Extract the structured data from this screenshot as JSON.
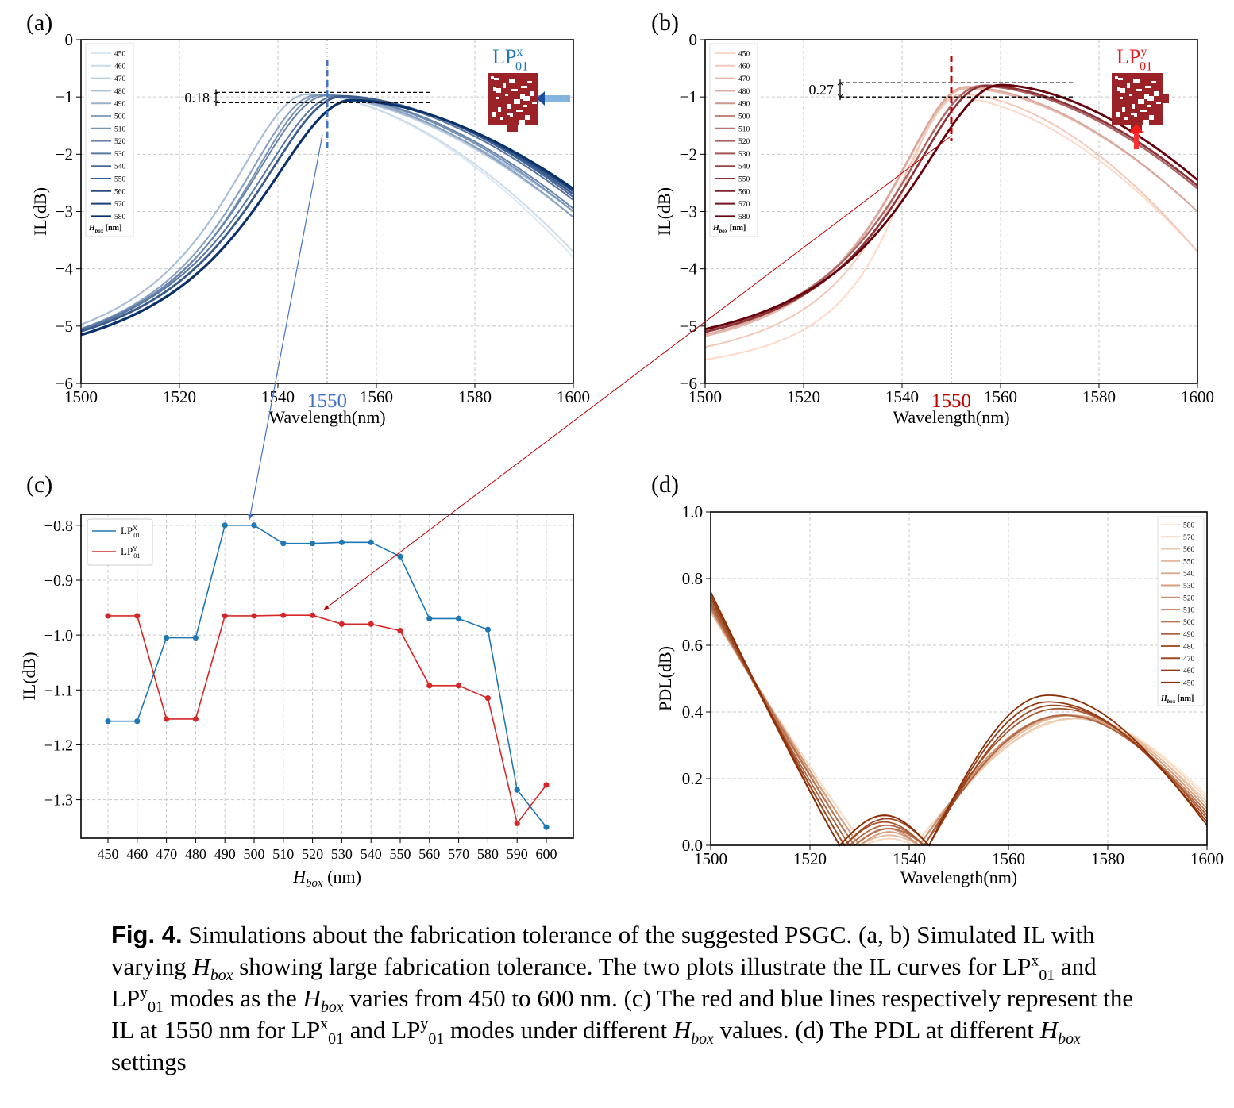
{
  "caption": {
    "fig_label": "Fig. 4.",
    "text_1": "Simulations about the fabrication tolerance of the suggested PSGC. (a, b) Simulated IL with varying",
    "text_2": "showing large fabrication tolerance.  The two plots illustrate the IL curves for",
    "text_3": "and",
    "text_4": "modes as the",
    "text_5": "varies from 450 to 600 nm.  (c) The red and blue lines respectively represent the IL at 1550 nm for",
    "text_6": "and",
    "text_7": "modes under different",
    "text_8": "values.  (d) The PDL at different",
    "text_9": "settings",
    "hbox_main": "H",
    "hbox_sub": "box",
    "lp_main": "LP",
    "lp_sub": "01",
    "lp_x": "x",
    "lp_y": "y"
  },
  "colors": {
    "blue_line": "#1f77b4",
    "red_line": "#d62728",
    "arrow_blue": "#4472c4",
    "arrow_red": "#c00000",
    "dash_blue": "#4472c4",
    "dash_red": "#c00000",
    "pad_red": "#9b2226"
  },
  "chart_data": [
    {
      "panel": "(a)",
      "type": "line",
      "xlabel": "Wavelength(nm)",
      "ylabel": "IL(dB)",
      "xlim": [
        1500,
        1600
      ],
      "ylim": [
        -6,
        0
      ],
      "xticks": [
        1500,
        1520,
        1540,
        1560,
        1580,
        1600
      ],
      "yticks": [
        0,
        -1,
        -2,
        -3,
        -4,
        -5,
        -6
      ],
      "grid": true,
      "highlight_x": "1550",
      "legend_title": "H_box [nm]",
      "legend_placement": "top-left",
      "mode_label": "LP01 x",
      "annotation": "0.18",
      "annotation_band": [
        -0.92,
        -1.1
      ],
      "palette": "Blues",
      "series": [
        {
          "name": "450",
          "peak_x": 1546,
          "peak_y": -0.95,
          "left_w": 22,
          "right_w": 40,
          "end_y": -3.8
        },
        {
          "name": "460",
          "peak_x": 1546,
          "peak_y": -0.95,
          "left_w": 22,
          "right_w": 42,
          "end_y": -3.7
        },
        {
          "name": "470",
          "peak_x": 1546,
          "peak_y": -0.95,
          "left_w": 22,
          "right_w": 50,
          "end_y": -3.1
        },
        {
          "name": "480",
          "peak_x": 1546,
          "peak_y": -0.95,
          "left_w": 22,
          "right_w": 52,
          "end_y": -3.0
        },
        {
          "name": "490",
          "peak_x": 1548,
          "peak_y": -0.96,
          "left_w": 22,
          "right_w": 50,
          "end_y": -3.1
        },
        {
          "name": "500",
          "peak_x": 1548,
          "peak_y": -0.96,
          "left_w": 22,
          "right_w": 50,
          "end_y": -3.1
        },
        {
          "name": "510",
          "peak_x": 1549,
          "peak_y": -0.96,
          "left_w": 22,
          "right_w": 51,
          "end_y": -3.0
        },
        {
          "name": "520",
          "peak_x": 1550,
          "peak_y": -0.97,
          "left_w": 23,
          "right_w": 52,
          "end_y": -2.95
        },
        {
          "name": "530",
          "peak_x": 1552,
          "peak_y": -0.98,
          "left_w": 24,
          "right_w": 55,
          "end_y": -2.8
        },
        {
          "name": "540",
          "peak_x": 1553,
          "peak_y": -0.98,
          "left_w": 24,
          "right_w": 56,
          "end_y": -2.75
        },
        {
          "name": "550",
          "peak_x": 1553,
          "peak_y": -0.99,
          "left_w": 24,
          "right_w": 56,
          "end_y": -2.7
        },
        {
          "name": "560",
          "peak_x": 1555,
          "peak_y": -1.05,
          "left_w": 25,
          "right_w": 58,
          "end_y": -2.65
        },
        {
          "name": "570",
          "peak_x": 1555,
          "peak_y": -1.05,
          "left_w": 25,
          "right_w": 58,
          "end_y": -2.62
        },
        {
          "name": "580",
          "peak_x": 1555,
          "peak_y": -1.06,
          "left_w": 25,
          "right_w": 59,
          "end_y": -2.6
        }
      ]
    },
    {
      "panel": "(b)",
      "type": "line",
      "xlabel": "Wavelength(nm)",
      "ylabel": "IL(dB)",
      "xlim": [
        1500,
        1600
      ],
      "ylim": [
        -6,
        0
      ],
      "xticks": [
        1500,
        1520,
        1540,
        1560,
        1580,
        1600
      ],
      "yticks": [
        0,
        -1,
        -2,
        -3,
        -4,
        -5,
        -6
      ],
      "grid": true,
      "highlight_x": "1550",
      "legend_title": "H_box [nm]",
      "legend_placement": "top-left",
      "mode_label": "LP01 y",
      "annotation": "0.27",
      "annotation_band": [
        -0.75,
        -1.0
      ],
      "palette": "Reds",
      "series": [
        {
          "name": "450",
          "peak_x": 1550,
          "peak_y": -1.0,
          "left_w": 14,
          "right_w": 38,
          "end_y": -3.7
        },
        {
          "name": "460",
          "peak_x": 1552,
          "peak_y": -0.95,
          "left_w": 18,
          "right_w": 40,
          "end_y": -3.7
        },
        {
          "name": "470",
          "peak_x": 1553,
          "peak_y": -0.85,
          "left_w": 20,
          "right_w": 44,
          "end_y": -3.0
        },
        {
          "name": "480",
          "peak_x": 1553,
          "peak_y": -0.82,
          "left_w": 20,
          "right_w": 44,
          "end_y": -3.0
        },
        {
          "name": "490",
          "peak_x": 1556,
          "peak_y": -0.8,
          "left_w": 22,
          "right_w": 47,
          "end_y": -2.6
        },
        {
          "name": "500",
          "peak_x": 1556,
          "peak_y": -0.8,
          "left_w": 22,
          "right_w": 47,
          "end_y": -2.6
        },
        {
          "name": "510",
          "peak_x": 1556,
          "peak_y": -0.81,
          "left_w": 22,
          "right_w": 47,
          "end_y": -2.6
        },
        {
          "name": "520",
          "peak_x": 1556,
          "peak_y": -0.81,
          "left_w": 22,
          "right_w": 47,
          "end_y": -2.6
        },
        {
          "name": "530",
          "peak_x": 1557,
          "peak_y": -0.8,
          "left_w": 22,
          "right_w": 47,
          "end_y": -2.55
        },
        {
          "name": "540",
          "peak_x": 1557,
          "peak_y": -0.8,
          "left_w": 22,
          "right_w": 47,
          "end_y": -2.55
        },
        {
          "name": "550",
          "peak_x": 1557,
          "peak_y": -0.8,
          "left_w": 22,
          "right_w": 47,
          "end_y": -2.55
        },
        {
          "name": "560",
          "peak_x": 1560,
          "peak_y": -0.79,
          "left_w": 24,
          "right_w": 49,
          "end_y": -2.45
        },
        {
          "name": "570",
          "peak_x": 1560,
          "peak_y": -0.79,
          "left_w": 24,
          "right_w": 49,
          "end_y": -2.45
        },
        {
          "name": "580",
          "peak_x": 1560,
          "peak_y": -0.79,
          "left_w": 24,
          "right_w": 49,
          "end_y": -2.45
        }
      ]
    },
    {
      "panel": "(c)",
      "type": "line",
      "xlabel": "H_box (nm)",
      "ylabel": "IL(dB)",
      "categories": [
        450,
        460,
        470,
        480,
        490,
        500,
        510,
        520,
        530,
        540,
        550,
        560,
        570,
        580,
        590,
        600
      ],
      "ylim": [
        -1.37,
        -0.78
      ],
      "yticks": [
        -0.8,
        -0.9,
        -1.0,
        -1.1,
        -1.2,
        -1.3
      ],
      "ytick_labels": [
        "−0.8",
        "−0.9",
        "−1.0",
        "−1.1",
        "−1.2",
        "−1.3"
      ],
      "grid": true,
      "legend_placement": "top-left",
      "series": [
        {
          "name": "LP01 x",
          "color": "#1f77b4",
          "values": [
            -1.157,
            -1.157,
            -1.005,
            -1.005,
            -0.8,
            -0.8,
            -0.833,
            -0.833,
            -0.831,
            -0.831,
            -0.857,
            -0.97,
            -0.97,
            -0.99,
            -1.282,
            -1.35
          ]
        },
        {
          "name": "LP01 y",
          "color": "#d62728",
          "values": [
            -0.965,
            -0.965,
            -1.153,
            -1.153,
            -0.965,
            -0.965,
            -0.964,
            -0.964,
            -0.98,
            -0.98,
            -0.992,
            -1.092,
            -1.092,
            -1.115,
            -1.343,
            -1.273
          ]
        }
      ]
    },
    {
      "panel": "(d)",
      "type": "line",
      "xlabel": "Wavelength(nm)",
      "ylabel": "PDL(dB)",
      "xlim": [
        1500,
        1600
      ],
      "ylim": [
        0,
        1.0
      ],
      "xticks": [
        1500,
        1520,
        1540,
        1560,
        1580,
        1600
      ],
      "yticks": [
        0.0,
        0.2,
        0.4,
        0.6,
        0.8,
        1.0
      ],
      "ytick_labels": [
        "0.0",
        "0.2",
        "0.4",
        "0.6",
        "0.8",
        "1.0"
      ],
      "grid": true,
      "legend_title": "H_box [nm]",
      "legend_placement": "top-right",
      "palette": "Oranges",
      "series": [
        {
          "name": "580",
          "start": 0.7,
          "z1": 1531,
          "bump": 0.02,
          "z2": 1541,
          "peak_x": 1574,
          "peak_y": 0.38,
          "end": 0.15
        },
        {
          "name": "570",
          "start": 0.7,
          "z1": 1531,
          "bump": 0.02,
          "z2": 1541,
          "peak_x": 1574,
          "peak_y": 0.38,
          "end": 0.14
        },
        {
          "name": "560",
          "start": 0.7,
          "z1": 1530,
          "bump": 0.03,
          "z2": 1542,
          "peak_x": 1573,
          "peak_y": 0.38,
          "end": 0.13
        },
        {
          "name": "550",
          "start": 0.7,
          "z1": 1530,
          "bump": 0.03,
          "z2": 1542,
          "peak_x": 1573,
          "peak_y": 0.39,
          "end": 0.12
        },
        {
          "name": "540",
          "start": 0.71,
          "z1": 1530,
          "bump": 0.04,
          "z2": 1542,
          "peak_x": 1572,
          "peak_y": 0.39,
          "end": 0.11
        },
        {
          "name": "530",
          "start": 0.71,
          "z1": 1530,
          "bump": 0.04,
          "z2": 1542,
          "peak_x": 1572,
          "peak_y": 0.39,
          "end": 0.11
        },
        {
          "name": "520",
          "start": 0.71,
          "z1": 1529,
          "bump": 0.05,
          "z2": 1542,
          "peak_x": 1571,
          "peak_y": 0.39,
          "end": 0.1
        },
        {
          "name": "510",
          "start": 0.71,
          "z1": 1529,
          "bump": 0.05,
          "z2": 1543,
          "peak_x": 1571,
          "peak_y": 0.39,
          "end": 0.1
        },
        {
          "name": "500",
          "start": 0.72,
          "z1": 1529,
          "bump": 0.05,
          "z2": 1543,
          "peak_x": 1571,
          "peak_y": 0.39,
          "end": 0.09
        },
        {
          "name": "490",
          "start": 0.72,
          "z1": 1528,
          "bump": 0.06,
          "z2": 1543,
          "peak_x": 1571,
          "peak_y": 0.39,
          "end": 0.09
        },
        {
          "name": "480",
          "start": 0.73,
          "z1": 1527,
          "bump": 0.07,
          "z2": 1543,
          "peak_x": 1570,
          "peak_y": 0.41,
          "end": 0.08
        },
        {
          "name": "470",
          "start": 0.74,
          "z1": 1527,
          "bump": 0.08,
          "z2": 1544,
          "peak_x": 1569,
          "peak_y": 0.42,
          "end": 0.07
        },
        {
          "name": "460",
          "start": 0.75,
          "z1": 1526,
          "bump": 0.09,
          "z2": 1544,
          "peak_x": 1568,
          "peak_y": 0.43,
          "end": 0.07
        },
        {
          "name": "450",
          "start": 0.76,
          "z1": 1526,
          "bump": 0.09,
          "z2": 1544,
          "peak_x": 1568,
          "peak_y": 0.45,
          "end": 0.06
        }
      ]
    }
  ]
}
